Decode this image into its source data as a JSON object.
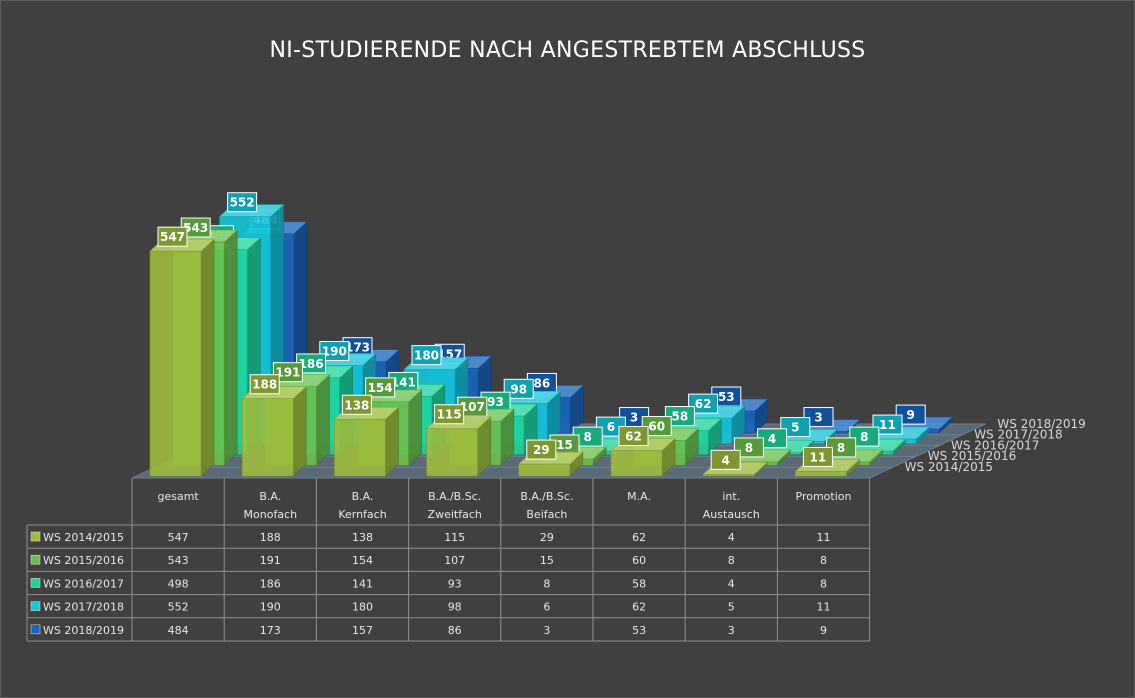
{
  "chart_data": {
    "type": "bar",
    "title": "NI-STUDIERENDE NACH ANGESTREBTEM ABSCHLUSS",
    "categories": [
      [
        "gesamt"
      ],
      [
        "B.A.",
        "Monofach"
      ],
      [
        "B.A.",
        "Kernfach"
      ],
      [
        "B.A./B.Sc.",
        "Zweitfach"
      ],
      [
        "B.A./B.Sc.",
        "Beifach"
      ],
      [
        "M.A."
      ],
      [
        "int.",
        "Austausch"
      ],
      [
        "Promotion"
      ]
    ],
    "series": [
      {
        "name": "WS 2014/2015",
        "values": [
          547,
          188,
          138,
          115,
          29,
          62,
          4,
          11
        ]
      },
      {
        "name": "WS 2015/2016",
        "values": [
          543,
          191,
          154,
          107,
          15,
          60,
          8,
          8
        ]
      },
      {
        "name": "WS 2016/2017",
        "values": [
          498,
          186,
          141,
          93,
          8,
          58,
          4,
          8
        ]
      },
      {
        "name": "WS 2017/2018",
        "values": [
          552,
          190,
          180,
          98,
          6,
          62,
          5,
          11
        ]
      },
      {
        "name": "WS 2018/2019",
        "values": [
          484,
          173,
          157,
          86,
          3,
          53,
          3,
          9
        ]
      }
    ],
    "colors": [
      "#9fbd3c",
      "#6cc04a",
      "#1fd49a",
      "#14c8d9",
      "#1565c0"
    ],
    "data_table": true
  }
}
